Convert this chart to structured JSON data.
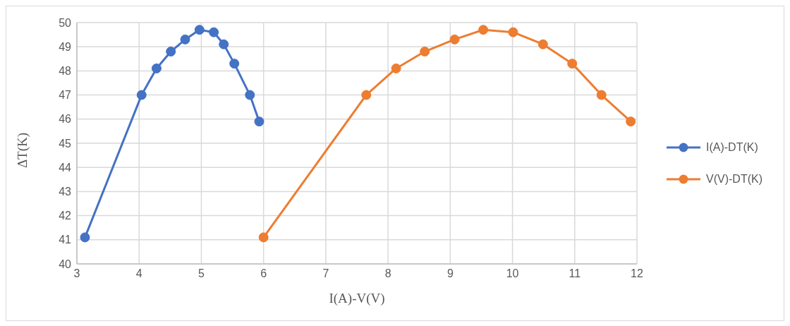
{
  "chart_data": {
    "type": "line",
    "xlabel": "I(A)-V(V)",
    "ylabel": "ΔT(K)",
    "xlim": [
      3,
      12
    ],
    "xticks": [
      3,
      4,
      5,
      6,
      7,
      8,
      9,
      10,
      11,
      12
    ],
    "ylim": [
      40,
      50
    ],
    "yticks": [
      40,
      41,
      42,
      43,
      44,
      45,
      46,
      47,
      48,
      49,
      50
    ],
    "grid": true,
    "legend": "right",
    "marker": "circle",
    "line_style": "solid",
    "series": [
      {
        "name": "I(A)-DT(K)",
        "color": "#4472c4",
        "x": [
          3.13,
          4.04,
          4.28,
          4.51,
          4.74,
          4.97,
          5.2,
          5.36,
          5.53,
          5.78,
          5.93
        ],
        "values": [
          41.1,
          47.0,
          48.1,
          48.8,
          49.3,
          49.7,
          49.6,
          49.1,
          48.3,
          47.0,
          45.9
        ]
      },
      {
        "name": "V(V)-DT(K)",
        "color": "#ed7d31",
        "x": [
          6.0,
          7.65,
          8.13,
          8.59,
          9.07,
          9.53,
          10.01,
          10.49,
          10.96,
          11.43,
          11.9
        ],
        "values": [
          41.1,
          47.0,
          48.1,
          48.8,
          49.3,
          49.7,
          49.6,
          49.1,
          48.3,
          47.0,
          45.9
        ]
      }
    ]
  }
}
